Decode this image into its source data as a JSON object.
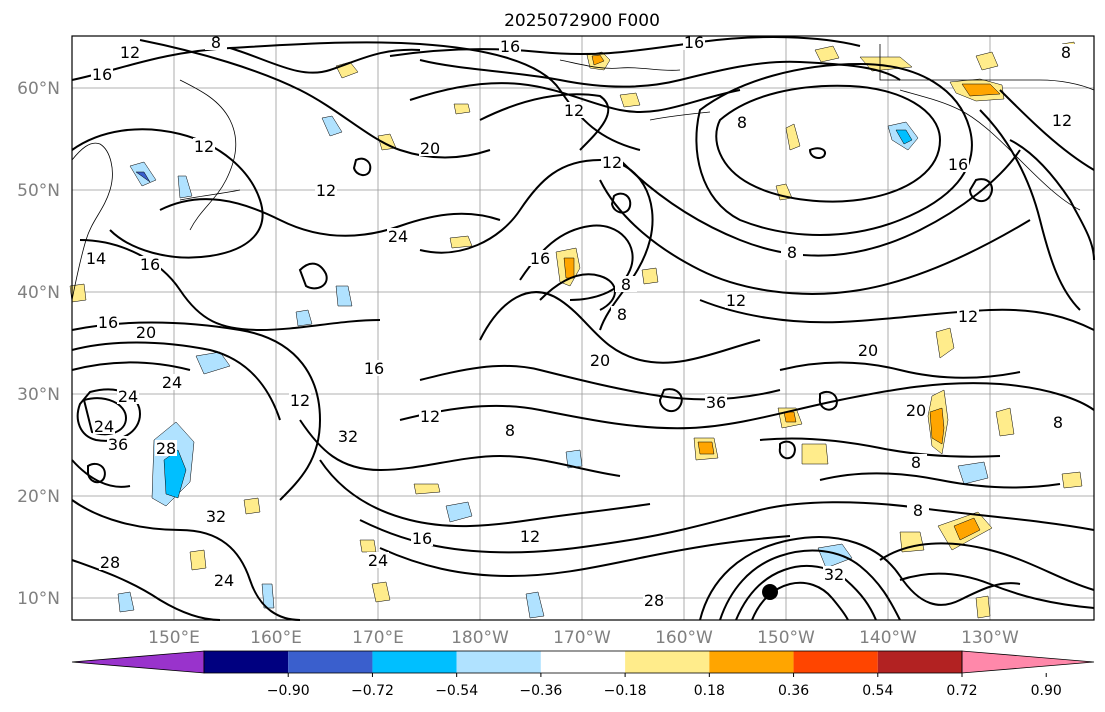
{
  "title": "2025072900 F000",
  "map": {
    "lat_labels": [
      "60°N",
      "50°N",
      "40°N",
      "30°N",
      "20°N",
      "10°N"
    ],
    "lon_labels": [
      "150°E",
      "160°E",
      "170°E",
      "180°W",
      "170°W",
      "160°W",
      "150°W",
      "140°W",
      "130°W"
    ],
    "gridlines": true,
    "contour_labels": [
      "12",
      "8",
      "16",
      "16",
      "16",
      "8",
      "12",
      "20",
      "12",
      "12",
      "8",
      "12",
      "16",
      "12",
      "16",
      "24",
      "8",
      "16",
      "8",
      "8",
      "12",
      "14",
      "16",
      "20",
      "16",
      "12",
      "12",
      "20",
      "36",
      "20",
      "20",
      "24",
      "12",
      "8",
      "32",
      "24",
      "24",
      "36",
      "28",
      "32",
      "8",
      "8",
      "16",
      "12",
      "32",
      "28",
      "24",
      "24",
      "28",
      "8"
    ],
    "feature_marker": "filled-black-circle"
  },
  "colorbar": {
    "tick_labels": [
      "−0.90",
      "−0.72",
      "−0.54",
      "−0.36",
      "−0.18",
      "0.18",
      "0.36",
      "0.54",
      "0.72",
      "0.90"
    ],
    "colors": [
      "#9933cc",
      "#000080",
      "#3a5fcd",
      "#00bfff",
      "#b0e2ff",
      "#ffffff",
      "#ffec8b",
      "#ffa500",
      "#ff4500",
      "#b22222",
      "#ff88aa"
    ],
    "extend": "both"
  }
}
